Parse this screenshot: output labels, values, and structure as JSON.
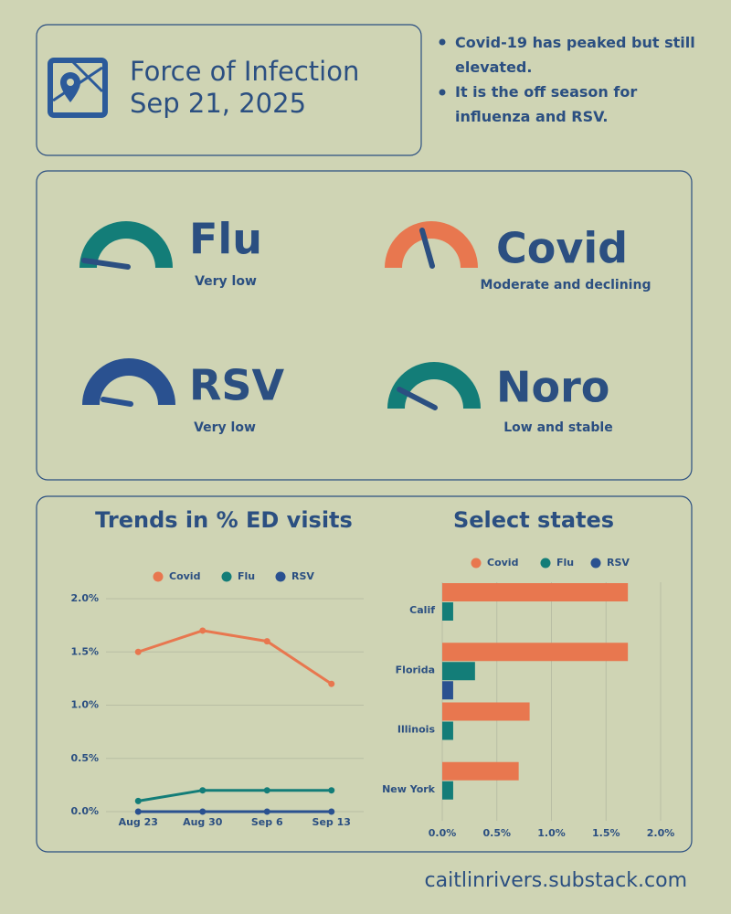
{
  "header": {
    "title": "Force of Infection",
    "date": "Sep 21, 2025"
  },
  "bullets": [
    "Covid-19 has peaked but still elevated.",
    "It is the off season for influenza and RSV."
  ],
  "gauges": [
    {
      "name": "Flu",
      "status": "Very low"
    },
    {
      "name": "Covid",
      "status": "Moderate and declining"
    },
    {
      "name": "RSV",
      "status": "Very low"
    },
    {
      "name": "Noro",
      "status": "Low and stable"
    }
  ],
  "chart_data": [
    {
      "type": "line",
      "title": "Trends in % ED visits",
      "categories": [
        "Aug 23",
        "Aug 30",
        "Sep 6",
        "Sep 13"
      ],
      "series": [
        {
          "name": "Covid",
          "color": "#e8774f",
          "values": [
            1.5,
            1.7,
            1.6,
            1.2
          ]
        },
        {
          "name": "Flu",
          "color": "#137d78",
          "values": [
            0.1,
            0.2,
            0.2,
            0.2
          ]
        },
        {
          "name": "RSV",
          "color": "#2a5190",
          "values": [
            0,
            0,
            0,
            0
          ]
        }
      ],
      "ylim": [
        0,
        2.0
      ],
      "yticks": [
        {
          "value": 0,
          "label": "0.0%"
        },
        {
          "value": 0.5,
          "label": "0.5%"
        },
        {
          "value": 1.0,
          "label": "1.0%"
        },
        {
          "value": 1.5,
          "label": "1.5%"
        },
        {
          "value": 2.0,
          "label": "2.0%"
        }
      ],
      "grid": true,
      "legend": "top"
    },
    {
      "type": "hbar",
      "title": "Select states",
      "categories": [
        "Calif",
        "Florida",
        "Illinois",
        "New York"
      ],
      "series": [
        {
          "name": "Covid",
          "color": "#e8774f",
          "values": [
            1.7,
            1.7,
            0.8,
            0.7
          ]
        },
        {
          "name": "Flu",
          "color": "#137d78",
          "values": [
            0.1,
            0.3,
            0.1,
            0.1
          ]
        },
        {
          "name": "RSV",
          "color": "#2a5190",
          "values": [
            0,
            0.1,
            0,
            0
          ]
        }
      ],
      "xlim": [
        0,
        2.0
      ],
      "xticks": [
        {
          "value": 0,
          "label": "0.0%"
        },
        {
          "value": 0.5,
          "label": "0.5%"
        },
        {
          "value": 1.0,
          "label": "1.0%"
        },
        {
          "value": 1.5,
          "label": "1.5%"
        },
        {
          "value": 2.0,
          "label": "2.0%"
        }
      ],
      "grid": true,
      "legend": "top"
    }
  ],
  "footer": "caitlinrivers.substack.com"
}
